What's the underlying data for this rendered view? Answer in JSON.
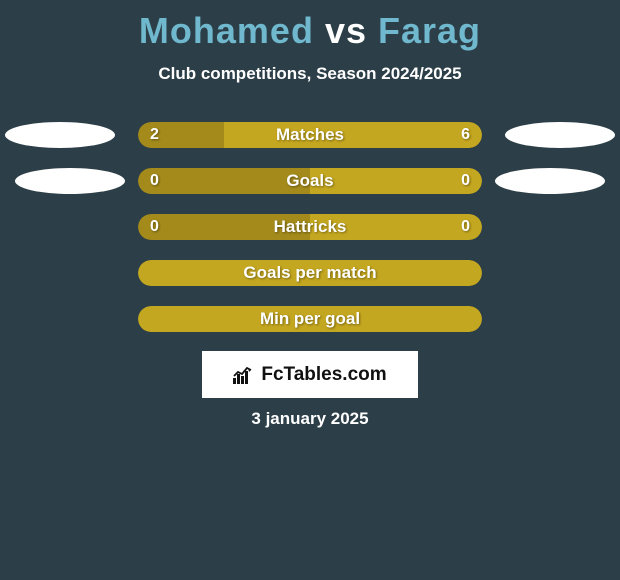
{
  "title": {
    "player1": "Mohamed",
    "vs": "vs",
    "player2": "Farag",
    "color_player": "#6fb8ce",
    "color_vs": "#ffffff"
  },
  "subtitle": "Club competitions, Season 2024/2025",
  "colors": {
    "background": "#2c3e47",
    "left_bar": "#a38a1b",
    "right_bar": "#c4a720",
    "ellipse": "#ffffff"
  },
  "stats": [
    {
      "label": "Matches",
      "left_value": "2",
      "right_value": "6",
      "left_pct": 25,
      "right_pct": 75,
      "show_ellipses": true,
      "ellipse_indent": false
    },
    {
      "label": "Goals",
      "left_value": "0",
      "right_value": "0",
      "left_pct": 50,
      "right_pct": 50,
      "show_ellipses": true,
      "ellipse_indent": true
    },
    {
      "label": "Hattricks",
      "left_value": "0",
      "right_value": "0",
      "left_pct": 50,
      "right_pct": 50,
      "show_ellipses": false,
      "ellipse_indent": false
    },
    {
      "label": "Goals per match",
      "left_value": "",
      "right_value": "",
      "left_pct": 100,
      "right_pct": 0,
      "show_ellipses": false,
      "ellipse_indent": false,
      "full_single": true
    },
    {
      "label": "Min per goal",
      "left_value": "",
      "right_value": "",
      "left_pct": 100,
      "right_pct": 0,
      "show_ellipses": false,
      "ellipse_indent": false,
      "full_single": true
    }
  ],
  "logo": {
    "text": "FcTables.com"
  },
  "date": "3 january 2025"
}
